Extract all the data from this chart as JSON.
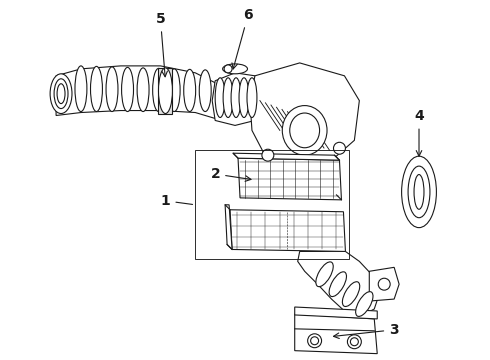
{
  "bg_color": "#ffffff",
  "line_color": "#1a1a1a",
  "fig_width": 4.9,
  "fig_height": 3.6,
  "dpi": 100,
  "label_fontsize": 10,
  "lw": 0.8
}
